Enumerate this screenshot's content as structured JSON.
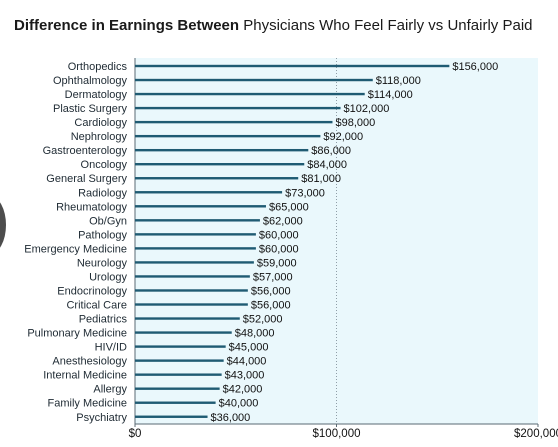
{
  "title_bold": "Difference in Earnings Between",
  "title_rest": "Physicians Who Feel Fairly vs Unfairly Paid",
  "colors": {
    "bar": "#1f5b73",
    "plot_bg": "#eaf8fc",
    "grid": "#8f9ea7",
    "axis": "#5a6a73"
  },
  "chart_data": {
    "type": "bar",
    "orientation": "horizontal",
    "title": "Difference in Earnings Between Physicians Who Feel Fairly vs Unfairly Paid",
    "categories": [
      "Orthopedics",
      "Ophthalmology",
      "Dermatology",
      "Plastic Surgery",
      "Cardiology",
      "Nephrology",
      "Gastroenterology",
      "Oncology",
      "General Surgery",
      "Radiology",
      "Rheumatology",
      "Ob/Gyn",
      "Pathology",
      "Emergency Medicine",
      "Neurology",
      "Urology",
      "Endocrinology",
      "Critical Care",
      "Pediatrics",
      "Pulmonary Medicine",
      "HIV/ID",
      "Anesthesiology",
      "Internal Medicine",
      "Allergy",
      "Family Medicine",
      "Psychiatry"
    ],
    "values": [
      156000,
      118000,
      114000,
      102000,
      98000,
      92000,
      86000,
      84000,
      81000,
      73000,
      65000,
      62000,
      60000,
      60000,
      59000,
      57000,
      56000,
      56000,
      52000,
      48000,
      45000,
      44000,
      43000,
      42000,
      40000,
      36000
    ],
    "value_labels": [
      "$156,000",
      "$118,000",
      "$114,000",
      "$102,000",
      "$98,000",
      "$92,000",
      "$86,000",
      "$84,000",
      "$81,000",
      "$73,000",
      "$65,000",
      "$62,000",
      "$60,000",
      "$60,000",
      "$59,000",
      "$57,000",
      "$56,000",
      "$56,000",
      "$52,000",
      "$48,000",
      "$45,000",
      "$44,000",
      "$43,000",
      "$42,000",
      "$40,000",
      "$36,000"
    ],
    "xlim": [
      0,
      200000
    ],
    "xticks": [
      0,
      100000,
      200000
    ],
    "xtick_labels": [
      "$0",
      "$100,000",
      "$200,000"
    ],
    "grid": "vertical dotted at $100,000",
    "legend": "none"
  }
}
